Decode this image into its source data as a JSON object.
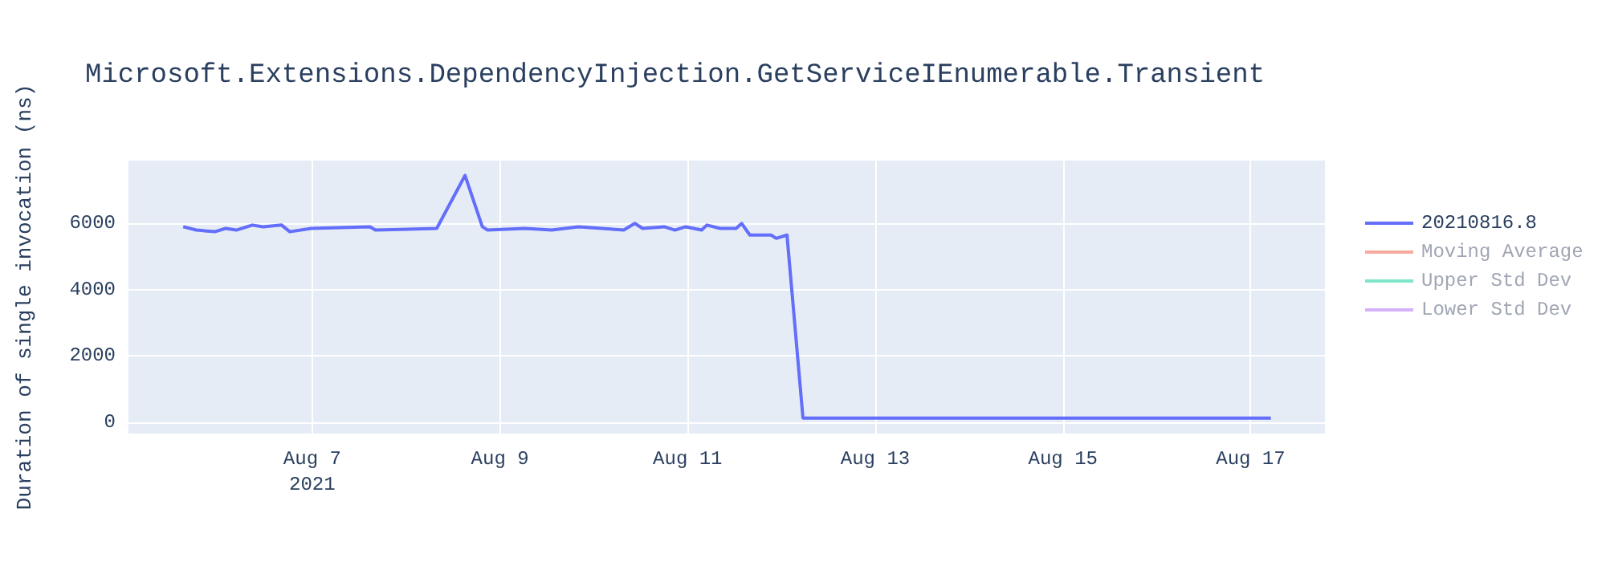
{
  "chart_data": {
    "type": "line",
    "title": "Microsoft.Extensions.DependencyInjection.GetServiceIEnumerable.Transient",
    "ylabel": "Duration of single invocation (ns)",
    "x": [
      "2021-08-05T15:00",
      "2021-08-05T18:20",
      "2021-08-05T23:05",
      "2021-08-06T01:50",
      "2021-08-06T04:35",
      "2021-08-06T08:40",
      "2021-08-06T11:25",
      "2021-08-06T16:10",
      "2021-08-06T18:15",
      "2021-08-06T23:45",
      "2021-08-07T14:45",
      "2021-08-07T16:10",
      "2021-08-08T07:50",
      "2021-08-08T15:05",
      "2021-08-08T19:30",
      "2021-08-08T20:50",
      "2021-08-09T06:25",
      "2021-08-09T13:15",
      "2021-08-09T20:05",
      "2021-08-10T07:40",
      "2021-08-10T10:30",
      "2021-08-10T12:30",
      "2021-08-10T18:00",
      "2021-08-10T20:45",
      "2021-08-10T23:30",
      "2021-08-11T03:35",
      "2021-08-11T04:55",
      "2021-08-11T08:20",
      "2021-08-11T12:25",
      "2021-08-11T13:50",
      "2021-08-11T15:55",
      "2021-08-11T21:20",
      "2021-08-11T22:40",
      "2021-08-12T01:25",
      "2021-08-12T05:30",
      "2021-08-13T00:00",
      "2021-08-14T00:00",
      "2021-08-15T00:00",
      "2021-08-16T00:00",
      "2021-08-17T05:10"
    ],
    "series": [
      {
        "name": "20210816.8",
        "color": "#636efa",
        "values": [
          5900,
          5800,
          5750,
          5850,
          5800,
          5950,
          5900,
          5950,
          5750,
          5850,
          5900,
          5800,
          5850,
          7450,
          5900,
          5800,
          5850,
          5800,
          5900,
          5800,
          6000,
          5850,
          5900,
          5800,
          5900,
          5800,
          5950,
          5850,
          5850,
          6000,
          5650,
          5650,
          5550,
          5650,
          120,
          120,
          120,
          120,
          120,
          120
        ]
      },
      {
        "name": "Moving Average",
        "color": "#ef553b",
        "values": [
          null,
          null,
          null,
          null,
          null,
          null,
          null,
          null,
          null,
          null,
          null,
          null,
          null,
          null,
          null,
          null,
          null,
          null,
          null,
          null,
          null,
          null,
          null,
          null,
          null,
          null,
          null,
          null,
          null,
          null,
          null,
          null,
          null,
          null,
          null,
          null,
          null,
          null,
          null,
          null
        ]
      },
      {
        "name": "Upper Std Dev",
        "color": "#00cc96",
        "values": [
          null,
          null,
          null,
          null,
          null,
          null,
          null,
          null,
          null,
          null,
          null,
          null,
          null,
          null,
          null,
          null,
          null,
          null,
          null,
          null,
          null,
          null,
          null,
          null,
          null,
          null,
          null,
          null,
          null,
          null,
          null,
          null,
          null,
          null,
          null,
          null,
          null,
          null,
          null,
          null
        ]
      },
      {
        "name": "Lower Std Dev",
        "color": "#ab63fa",
        "values": [
          null,
          null,
          null,
          null,
          null,
          null,
          null,
          null,
          null,
          null,
          null,
          null,
          null,
          null,
          null,
          null,
          null,
          null,
          null,
          null,
          null,
          null,
          null,
          null,
          null,
          null,
          null,
          null,
          null,
          null,
          null,
          null,
          null,
          null,
          null,
          null,
          null,
          null,
          null,
          null
        ]
      }
    ],
    "xlim": [
      "2021-08-05T01:00",
      "2021-08-17T19:00"
    ],
    "xticks": [
      {
        "value": "2021-08-07",
        "label": "Aug 7\n2021"
      },
      {
        "value": "2021-08-09",
        "label": "Aug 9"
      },
      {
        "value": "2021-08-11",
        "label": "Aug 11"
      },
      {
        "value": "2021-08-13",
        "label": "Aug 13"
      },
      {
        "value": "2021-08-15",
        "label": "Aug 15"
      },
      {
        "value": "2021-08-17",
        "label": "Aug 17"
      }
    ],
    "ylim": [
      -350,
      7900
    ],
    "yticks": [
      0,
      2000,
      4000,
      6000
    ],
    "grid": true,
    "legend": "top right"
  }
}
